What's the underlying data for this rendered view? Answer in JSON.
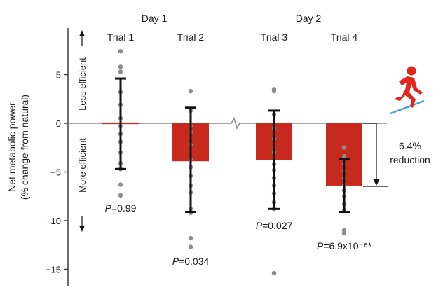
{
  "chart_data": {
    "type": "bar",
    "ylabel_line1": "Net metabolic power",
    "ylabel_line2": "(% change from natural)",
    "ylim": [
      -16,
      8
    ],
    "yticks": [
      5,
      0,
      -5,
      -10,
      -15
    ],
    "ytick_labels": [
      "5",
      "0",
      "−5",
      "−10",
      "−15"
    ],
    "day_labels": [
      "Day 1",
      "Day 2"
    ],
    "efficiency_labels": {
      "less": "Less efficient",
      "more": "More efficient"
    },
    "categories": [
      "Trial 1",
      "Trial 2",
      "Trial 3",
      "Trial 4"
    ],
    "values": [
      0.0,
      -3.9,
      -3.8,
      -6.4
    ],
    "error_upper": [
      4.6,
      1.6,
      1.3,
      -3.7
    ],
    "error_lower": [
      -4.7,
      -9.1,
      -8.8,
      -9.1
    ],
    "points": [
      [
        7.4,
        5.8,
        5.3,
        3.2,
        1.9,
        0.5,
        -0.3,
        -1.1,
        -1.9,
        -3.0,
        -4.1,
        -4.7,
        -6.3,
        -7.4
      ],
      [
        3.3,
        1.3,
        -0.3,
        -0.9,
        -2.2,
        -3.7,
        -4.5,
        -5.4,
        -6.4,
        -7.1,
        -8.8,
        -9.2,
        -11.8,
        -12.7
      ],
      [
        3.5,
        3.3,
        0.9,
        -0.5,
        -1.6,
        -3.0,
        -4.2,
        -4.8,
        -5.6,
        -6.4,
        -7.2,
        -8.1,
        -8.8,
        -15.4
      ],
      [
        -2.5,
        -3.4,
        -4.2,
        -4.9,
        -5.6,
        -6.3,
        -6.9,
        -7.5,
        -8.3,
        -8.9,
        -11.0,
        -11.3
      ]
    ],
    "pvalues": [
      "P=0.99",
      "P=0.034",
      "P=0.027",
      "P=6.9x10⁻⁶*"
    ],
    "annotation": {
      "line1": "6.4%",
      "line2": "reduction"
    },
    "colors": {
      "bar": "#c8291f",
      "points": "#8c8c8c",
      "error": "#111111",
      "zero": "#888888",
      "runner": "#e0251b",
      "treadmill": "#3aa6dc"
    },
    "icons": [
      "runner-icon"
    ]
  }
}
